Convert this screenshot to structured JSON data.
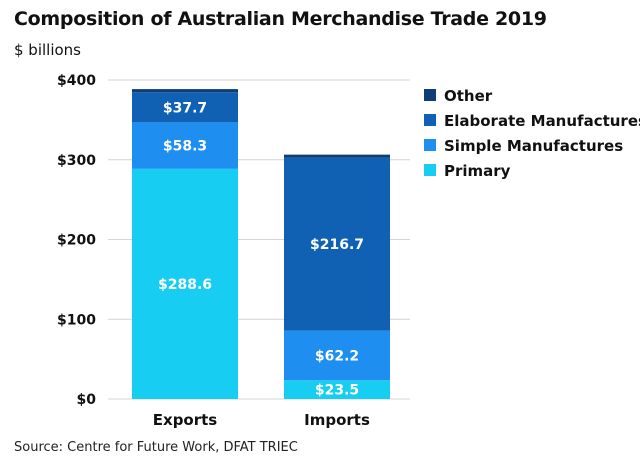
{
  "header": {
    "title": "Composition of Australian Merchandise Trade 2019",
    "unit_label": "$ billions"
  },
  "footer": {
    "source": "Source: Centre for Future Work, DFAT TRIEC"
  },
  "colors": {
    "Other": "#0e3f74",
    "Elaborate Manufactures": "#1061b4",
    "Simple Manufactures": "#1e8ef0",
    "Primary": "#18cdf2",
    "grid": "#d4d4d4"
  },
  "chart_data": {
    "type": "bar",
    "stacked": true,
    "categories": [
      "Exports",
      "Imports"
    ],
    "series": [
      {
        "name": "Primary",
        "values": [
          288.6,
          23.5
        ],
        "labels": [
          "$288.6",
          "$23.5"
        ]
      },
      {
        "name": "Simple Manufactures",
        "values": [
          58.3,
          62.2
        ],
        "labels": [
          "$58.3",
          "$62.2"
        ]
      },
      {
        "name": "Elaborate Manufactures",
        "values": [
          37.7,
          216.7
        ],
        "labels": [
          "$37.7",
          "$216.7"
        ]
      },
      {
        "name": "Other",
        "values": [
          4,
          4
        ],
        "labels": [
          "",
          ""
        ]
      }
    ],
    "legend_order": [
      "Other",
      "Elaborate Manufactures",
      "Simple Manufactures",
      "Primary"
    ],
    "yticks": [
      0,
      100,
      200,
      300,
      400
    ],
    "ytick_labels": [
      "$0",
      "$100",
      "$200",
      "$300",
      "$400"
    ],
    "ylim": [
      0,
      400
    ],
    "ylabel": "$ billions",
    "xlabel": "",
    "grid": true,
    "legend_position": "right"
  }
}
